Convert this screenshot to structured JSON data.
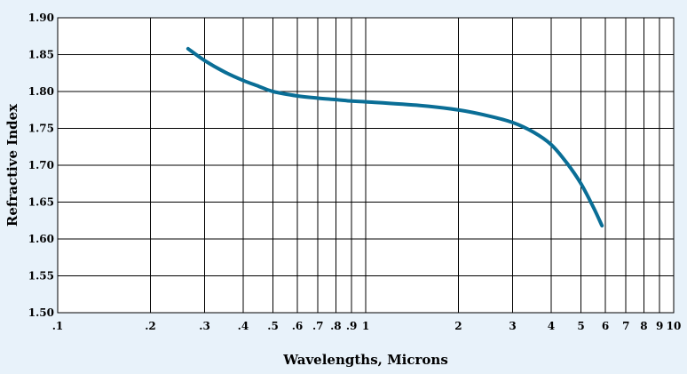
{
  "chart_data": {
    "type": "line",
    "title": "",
    "xlabel": "Wavelengths, Microns",
    "ylabel": "Refractive Index",
    "x_scale": "log",
    "xlim": [
      0.1,
      10
    ],
    "ylim": [
      1.5,
      1.9
    ],
    "grid": true,
    "legend": "none",
    "x_ticks": [
      {
        "value": 0.1,
        "label": ".1"
      },
      {
        "value": 0.2,
        "label": ".2"
      },
      {
        "value": 0.3,
        "label": ".3"
      },
      {
        "value": 0.4,
        "label": ".4"
      },
      {
        "value": 0.5,
        "label": ".5"
      },
      {
        "value": 0.6,
        "label": ".6"
      },
      {
        "value": 0.7,
        "label": ".7"
      },
      {
        "value": 0.8,
        "label": ".8"
      },
      {
        "value": 0.9,
        "label": ".9"
      },
      {
        "value": 1,
        "label": "1"
      },
      {
        "value": 2,
        "label": "2"
      },
      {
        "value": 3,
        "label": "3"
      },
      {
        "value": 4,
        "label": "4"
      },
      {
        "value": 5,
        "label": "5"
      },
      {
        "value": 6,
        "label": "6"
      },
      {
        "value": 7,
        "label": "7"
      },
      {
        "value": 8,
        "label": "8"
      },
      {
        "value": 9,
        "label": "9"
      },
      {
        "value": 10,
        "label": "10"
      }
    ],
    "y_ticks": [
      {
        "value": 1.5,
        "label": "1.50"
      },
      {
        "value": 1.55,
        "label": "1.55"
      },
      {
        "value": 1.6,
        "label": "1.60"
      },
      {
        "value": 1.65,
        "label": "1.65"
      },
      {
        "value": 1.7,
        "label": "1.70"
      },
      {
        "value": 1.75,
        "label": "1.75"
      },
      {
        "value": 1.8,
        "label": "1.80"
      },
      {
        "value": 1.85,
        "label": "1.85"
      },
      {
        "value": 1.9,
        "label": "1.90"
      }
    ],
    "series": [
      {
        "color": "#0a6e96",
        "points": [
          {
            "x": 0.265,
            "y": 1.858
          },
          {
            "x": 0.3,
            "y": 1.842
          },
          {
            "x": 0.35,
            "y": 1.826
          },
          {
            "x": 0.4,
            "y": 1.815
          },
          {
            "x": 0.45,
            "y": 1.807
          },
          {
            "x": 0.5,
            "y": 1.8
          },
          {
            "x": 0.6,
            "y": 1.794
          },
          {
            "x": 0.7,
            "y": 1.791
          },
          {
            "x": 0.8,
            "y": 1.789
          },
          {
            "x": 0.9,
            "y": 1.787
          },
          {
            "x": 1.0,
            "y": 1.786
          },
          {
            "x": 1.5,
            "y": 1.781
          },
          {
            "x": 2.0,
            "y": 1.775
          },
          {
            "x": 2.5,
            "y": 1.767
          },
          {
            "x": 3.0,
            "y": 1.758
          },
          {
            "x": 3.5,
            "y": 1.745
          },
          {
            "x": 4.0,
            "y": 1.728
          },
          {
            "x": 4.5,
            "y": 1.703
          },
          {
            "x": 5.0,
            "y": 1.675
          },
          {
            "x": 5.5,
            "y": 1.642
          },
          {
            "x": 5.85,
            "y": 1.618
          }
        ]
      }
    ]
  }
}
